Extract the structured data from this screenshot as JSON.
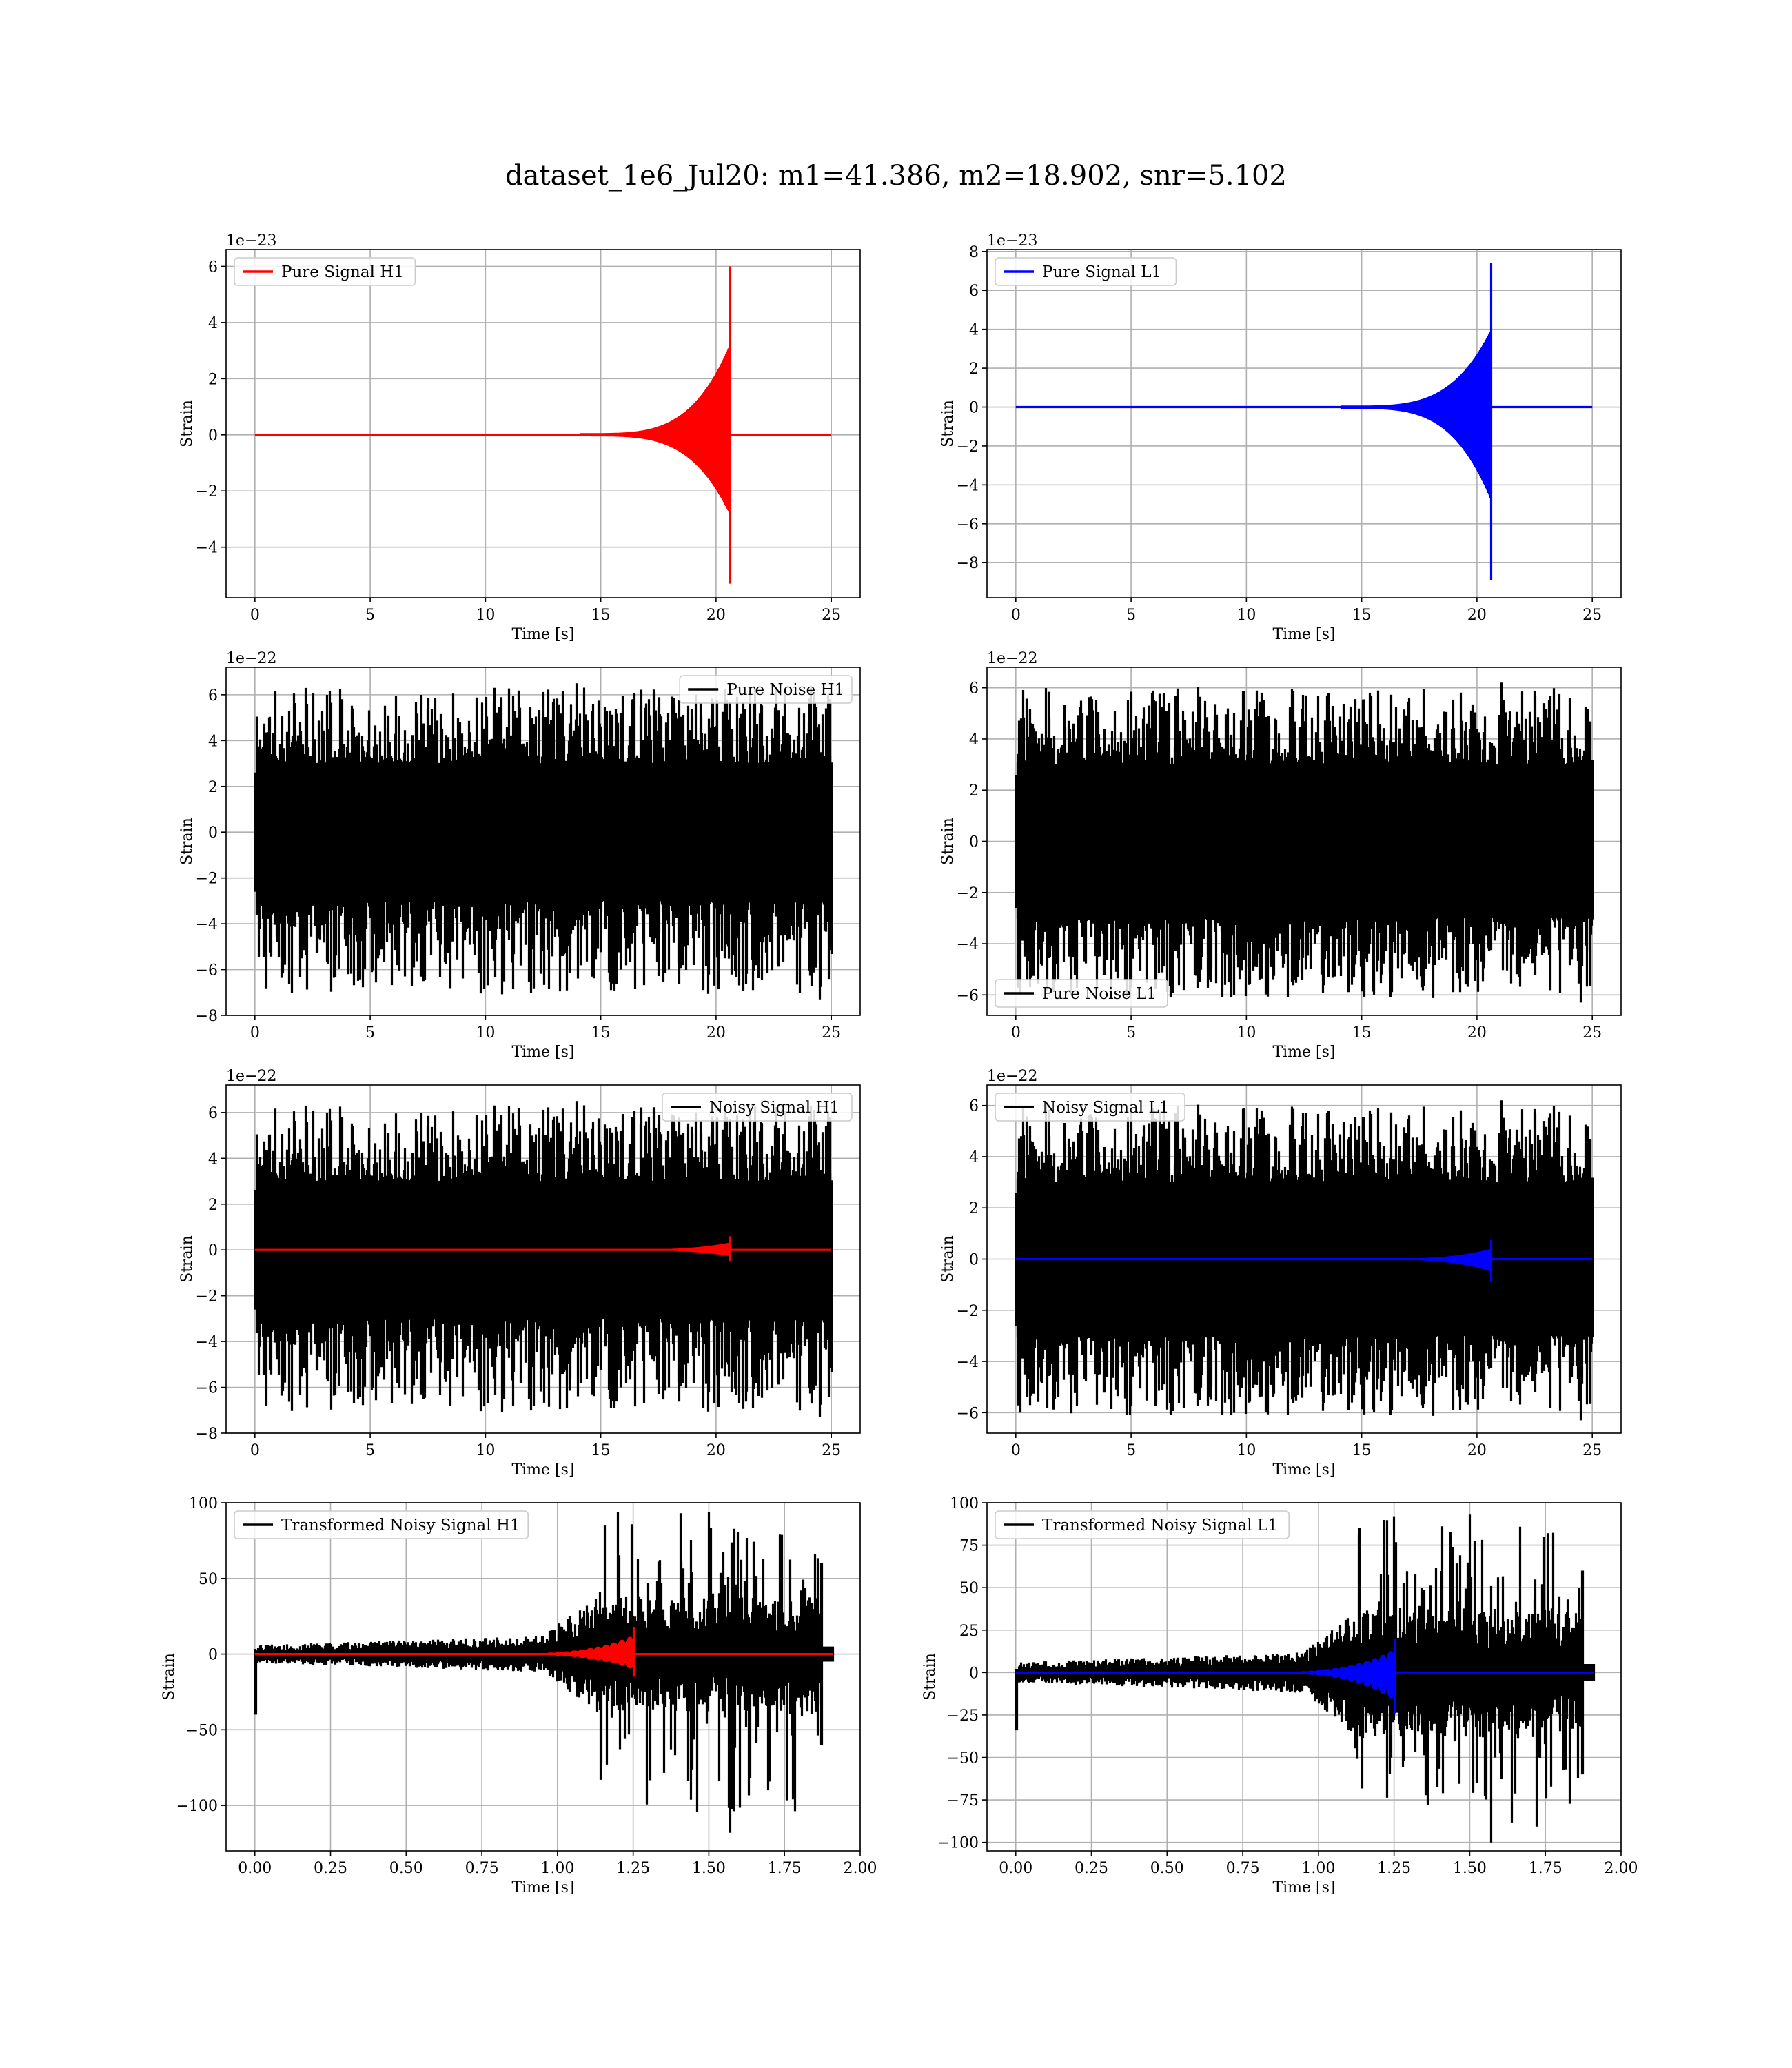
{
  "figure": {
    "title": "dataset_1e6_Jul20: m1=41.386, m2=18.902, snr=5.102"
  },
  "colors": {
    "h1_signal": "#ff0000",
    "l1_signal": "#0000ff",
    "noise": "#000000",
    "grid": "#b0b0b0",
    "axes": "#000000"
  },
  "chart_data": [
    {
      "id": "pure-signal-h1",
      "type": "line",
      "xlabel": "Time [s]",
      "ylabel": "Strain",
      "offset_text": "1e−23",
      "xlim": [
        -1.25,
        26.25
      ],
      "ylim": [
        -5.8,
        6.6
      ],
      "xticks": [
        0,
        5,
        10,
        15,
        20,
        25
      ],
      "xtick_labels": [
        "0",
        "5",
        "10",
        "15",
        "20",
        "25"
      ],
      "yticks": [
        -4,
        -2,
        0,
        2,
        4,
        6
      ],
      "ytick_labels": [
        "−4",
        "−2",
        "0",
        "2",
        "4",
        "6"
      ],
      "grid": true,
      "legend_position": "upper left",
      "series": [
        {
          "name": "Pure Signal H1",
          "color": "#ff0000",
          "kind": "chirp",
          "x_range": [
            0,
            25
          ],
          "merger_time": 20.6,
          "peak_pos": 6.0,
          "peak_neg": -5.3,
          "baseline": 0
        }
      ]
    },
    {
      "id": "pure-signal-l1",
      "type": "line",
      "xlabel": "Time [s]",
      "ylabel": "Strain",
      "offset_text": "1e−23",
      "xlim": [
        -1.25,
        26.25
      ],
      "ylim": [
        -9.8,
        8.1
      ],
      "xticks": [
        0,
        5,
        10,
        15,
        20,
        25
      ],
      "xtick_labels": [
        "0",
        "5",
        "10",
        "15",
        "20",
        "25"
      ],
      "yticks": [
        -8,
        -6,
        -4,
        -2,
        0,
        2,
        4,
        6,
        8
      ],
      "ytick_labels": [
        "−8",
        "−6",
        "−4",
        "−2",
        "0",
        "2",
        "4",
        "6",
        "8"
      ],
      "grid": true,
      "legend_position": "upper left",
      "series": [
        {
          "name": "Pure Signal L1",
          "color": "#0000ff",
          "kind": "chirp",
          "x_range": [
            0,
            25
          ],
          "merger_time": 20.6,
          "peak_pos": 7.4,
          "peak_neg": -8.9,
          "baseline": 0
        }
      ]
    },
    {
      "id": "pure-noise-h1",
      "type": "line",
      "xlabel": "Time [s]",
      "ylabel": "Strain",
      "offset_text": "1e−22",
      "xlim": [
        -1.25,
        26.25
      ],
      "ylim": [
        -8.0,
        7.2
      ],
      "xticks": [
        0,
        5,
        10,
        15,
        20,
        25
      ],
      "xtick_labels": [
        "0",
        "5",
        "10",
        "15",
        "20",
        "25"
      ],
      "yticks": [
        -8,
        -6,
        -4,
        -2,
        0,
        2,
        4,
        6
      ],
      "ytick_labels": [
        "−8",
        "−6",
        "−4",
        "−2",
        "0",
        "2",
        "4",
        "6"
      ],
      "grid": true,
      "legend_position": "upper right",
      "series": [
        {
          "name": "Pure Noise H1",
          "color": "#000000",
          "kind": "noise",
          "x_range": [
            0,
            25
          ],
          "core": 3.0,
          "max": 6.5,
          "min": -7.3,
          "seed": 11
        }
      ]
    },
    {
      "id": "pure-noise-l1",
      "type": "line",
      "xlabel": "Time [s]",
      "ylabel": "Strain",
      "offset_text": "1e−22",
      "xlim": [
        -1.25,
        26.25
      ],
      "ylim": [
        -6.8,
        6.8
      ],
      "xticks": [
        0,
        5,
        10,
        15,
        20,
        25
      ],
      "xtick_labels": [
        "0",
        "5",
        "10",
        "15",
        "20",
        "25"
      ],
      "yticks": [
        -6,
        -4,
        -2,
        0,
        2,
        4,
        6
      ],
      "ytick_labels": [
        "−6",
        "−4",
        "−2",
        "0",
        "2",
        "4",
        "6"
      ],
      "grid": true,
      "legend_position": "lower left",
      "series": [
        {
          "name": "Pure Noise L1",
          "color": "#000000",
          "kind": "noise",
          "x_range": [
            0,
            25
          ],
          "core": 3.0,
          "max": 6.2,
          "min": -6.3,
          "seed": 23
        }
      ]
    },
    {
      "id": "noisy-signal-h1",
      "type": "line",
      "xlabel": "Time [s]",
      "ylabel": "Strain",
      "offset_text": "1e−22",
      "xlim": [
        -1.25,
        26.25
      ],
      "ylim": [
        -8.0,
        7.2
      ],
      "xticks": [
        0,
        5,
        10,
        15,
        20,
        25
      ],
      "xtick_labels": [
        "0",
        "5",
        "10",
        "15",
        "20",
        "25"
      ],
      "yticks": [
        -8,
        -6,
        -4,
        -2,
        0,
        2,
        4,
        6
      ],
      "ytick_labels": [
        "−8",
        "−6",
        "−4",
        "−2",
        "0",
        "2",
        "4",
        "6"
      ],
      "grid": true,
      "legend_position": "upper right",
      "series": [
        {
          "name": "Noisy Signal H1",
          "color": "#000000",
          "kind": "noise",
          "x_range": [
            0,
            25
          ],
          "core": 3.0,
          "max": 6.5,
          "min": -7.3,
          "seed": 11
        },
        {
          "color": "#ff0000",
          "kind": "chirp",
          "x_range": [
            0,
            25
          ],
          "merger_time": 20.6,
          "peak_pos": 0.6,
          "peak_neg": -0.5,
          "baseline": 0
        }
      ]
    },
    {
      "id": "noisy-signal-l1",
      "type": "line",
      "xlabel": "Time [s]",
      "ylabel": "Strain",
      "offset_text": "1e−22",
      "xlim": [
        -1.25,
        26.25
      ],
      "ylim": [
        -6.8,
        6.8
      ],
      "xticks": [
        0,
        5,
        10,
        15,
        20,
        25
      ],
      "xtick_labels": [
        "0",
        "5",
        "10",
        "15",
        "20",
        "25"
      ],
      "yticks": [
        -6,
        -4,
        -2,
        0,
        2,
        4,
        6
      ],
      "ytick_labels": [
        "−6",
        "−4",
        "−2",
        "0",
        "2",
        "4",
        "6"
      ],
      "grid": true,
      "legend_position": "upper left",
      "series": [
        {
          "name": "Noisy Signal L1",
          "color": "#000000",
          "kind": "noise",
          "x_range": [
            0,
            25
          ],
          "core": 3.0,
          "max": 6.2,
          "min": -6.3,
          "seed": 23
        },
        {
          "color": "#0000ff",
          "kind": "chirp",
          "x_range": [
            0,
            25
          ],
          "merger_time": 20.6,
          "peak_pos": 0.75,
          "peak_neg": -0.9,
          "baseline": 0
        }
      ]
    },
    {
      "id": "transformed-noisy-signal-h1",
      "type": "line",
      "xlabel": "Time [s]",
      "ylabel": "Strain",
      "offset_text": "",
      "xlim": [
        -0.095,
        2.0
      ],
      "ylim": [
        -130,
        100
      ],
      "xticks": [
        0.0,
        0.25,
        0.5,
        0.75,
        1.0,
        1.25,
        1.5,
        1.75,
        2.0
      ],
      "xtick_labels": [
        "0.00",
        "0.25",
        "0.50",
        "0.75",
        "1.00",
        "1.25",
        "1.50",
        "1.75",
        "2.00"
      ],
      "yticks": [
        -100,
        -50,
        0,
        50,
        100
      ],
      "ytick_labels": [
        "−100",
        "−50",
        "0",
        "50",
        "100"
      ],
      "grid": true,
      "legend_position": "upper left",
      "series": [
        {
          "name": "Transformed Noisy Signal H1",
          "color": "#000000",
          "kind": "transformed",
          "x_range": [
            0,
            1.91
          ],
          "max": 94,
          "min": -118,
          "seed": 37,
          "initial_dip": -40
        },
        {
          "color": "#ff0000",
          "kind": "chirp",
          "x_range": [
            0,
            1.91
          ],
          "merger_time": 1.25,
          "peak_pos": 18,
          "peak_neg": -15,
          "baseline": 0
        }
      ]
    },
    {
      "id": "transformed-noisy-signal-l1",
      "type": "line",
      "xlabel": "Time [s]",
      "ylabel": "Strain",
      "offset_text": "",
      "xlim": [
        -0.095,
        2.0
      ],
      "ylim": [
        -105,
        100
      ],
      "xticks": [
        0.0,
        0.25,
        0.5,
        0.75,
        1.0,
        1.25,
        1.5,
        1.75,
        2.0
      ],
      "xtick_labels": [
        "0.00",
        "0.25",
        "0.50",
        "0.75",
        "1.00",
        "1.25",
        "1.50",
        "1.75",
        "2.00"
      ],
      "yticks": [
        -100,
        -75,
        -50,
        -25,
        0,
        25,
        50,
        75,
        100
      ],
      "ytick_labels": [
        "−100",
        "−75",
        "−50",
        "−25",
        "0",
        "25",
        "50",
        "75",
        "100"
      ],
      "grid": true,
      "legend_position": "upper left",
      "series": [
        {
          "name": "Transformed Noisy Signal L1",
          "color": "#000000",
          "kind": "transformed",
          "x_range": [
            0,
            1.91
          ],
          "max": 93,
          "min": -100,
          "seed": 53,
          "initial_dip": -34
        },
        {
          "color": "#0000ff",
          "kind": "chirp",
          "x_range": [
            0,
            1.91
          ],
          "merger_time": 1.25,
          "peak_pos": 20,
          "peak_neg": -24,
          "baseline": 0
        }
      ]
    }
  ]
}
